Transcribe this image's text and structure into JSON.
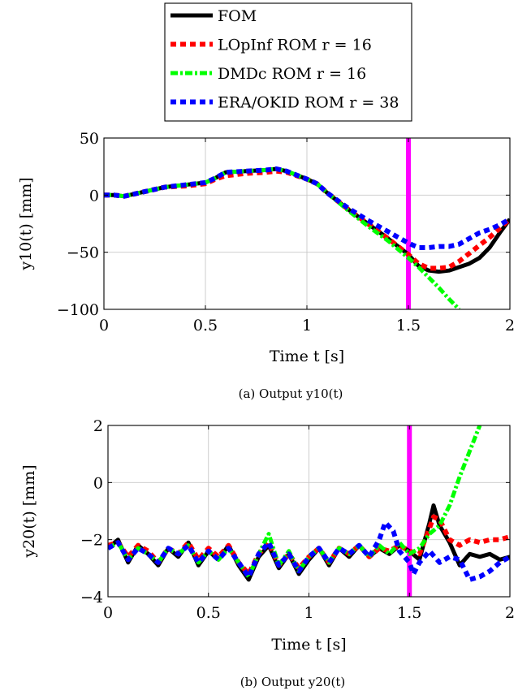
{
  "legend": {
    "entries": [
      {
        "label": "FOM",
        "color": "#000000",
        "dash": "solid",
        "width": 5
      },
      {
        "label": "LOpInf ROM r = 16",
        "color": "#ff0000",
        "dash": "dotted",
        "width": 6
      },
      {
        "label": "DMDc ROM r = 16",
        "color": "#00ff00",
        "dash": "dashdot",
        "width": 5
      },
      {
        "label": "ERA/OKID ROM r = 38",
        "color": "#0000ff",
        "dash": "dotted",
        "width": 6
      }
    ]
  },
  "colors": {
    "event_line": "#ff00ff",
    "grid": "#c8c8c8"
  },
  "chart_data": [
    {
      "type": "line",
      "caption": "(a) Output y10(t)",
      "xlabel": "Time t [s]",
      "ylabel": "y10(t) [mm]",
      "xlim": [
        0,
        2
      ],
      "ylim": [
        -100,
        50
      ],
      "xticks": [
        0,
        0.5,
        1,
        1.5,
        2
      ],
      "xtick_labels": [
        "0",
        "0.5",
        "1",
        "1.5",
        "2"
      ],
      "yticks": [
        -100,
        -50,
        0,
        50
      ],
      "ytick_labels": [
        "−100",
        "−50",
        "0",
        "50"
      ],
      "grid": true,
      "event_line_x": 1.5,
      "series": [
        {
          "name": "FOM",
          "x": [
            0,
            0.05,
            0.1,
            0.2,
            0.3,
            0.4,
            0.5,
            0.55,
            0.6,
            0.7,
            0.8,
            0.85,
            0.9,
            1.0,
            1.05,
            1.1,
            1.2,
            1.3,
            1.4,
            1.5,
            1.55,
            1.6,
            1.65,
            1.7,
            1.75,
            1.8,
            1.85,
            1.9,
            1.95,
            2.0
          ],
          "y": [
            0,
            0,
            -1,
            3,
            7,
            9,
            11,
            15,
            20,
            21,
            22,
            23,
            21,
            14,
            10,
            2,
            -12,
            -25,
            -38,
            -52,
            -62,
            -66,
            -67,
            -66,
            -63,
            -60,
            -55,
            -46,
            -33,
            -21
          ]
        },
        {
          "name": "LOpInf ROM r = 16",
          "x": [
            0,
            0.05,
            0.1,
            0.2,
            0.3,
            0.4,
            0.5,
            0.55,
            0.6,
            0.7,
            0.8,
            0.85,
            0.9,
            1.0,
            1.05,
            1.1,
            1.2,
            1.3,
            1.4,
            1.5,
            1.55,
            1.6,
            1.65,
            1.7,
            1.75,
            1.8,
            1.85,
            1.9,
            1.95,
            2.0
          ],
          "y": [
            0,
            0,
            -1,
            3,
            7,
            8,
            10,
            14,
            17,
            19,
            20,
            21,
            20,
            14,
            10,
            2,
            -12,
            -25,
            -38,
            -52,
            -60,
            -64,
            -64,
            -63,
            -58,
            -51,
            -44,
            -37,
            -29,
            -21
          ]
        },
        {
          "name": "DMDc ROM r = 16",
          "x": [
            0,
            0.05,
            0.1,
            0.2,
            0.3,
            0.4,
            0.5,
            0.55,
            0.6,
            0.7,
            0.8,
            0.85,
            0.9,
            1.0,
            1.05,
            1.1,
            1.2,
            1.3,
            1.4,
            1.5,
            1.55,
            1.6,
            1.65,
            1.7,
            1.75
          ],
          "y": [
            0,
            0,
            -1,
            3,
            7,
            9,
            11,
            15,
            20,
            21,
            22,
            23,
            21,
            14,
            10,
            2,
            -13,
            -27,
            -40,
            -55,
            -63,
            -72,
            -81,
            -91,
            -100
          ]
        },
        {
          "name": "ERA/OKID ROM r = 38",
          "x": [
            0,
            0.05,
            0.1,
            0.2,
            0.3,
            0.4,
            0.5,
            0.55,
            0.6,
            0.7,
            0.8,
            0.85,
            0.9,
            1.0,
            1.05,
            1.1,
            1.2,
            1.3,
            1.4,
            1.45,
            1.5,
            1.55,
            1.6,
            1.65,
            1.7,
            1.75,
            1.8,
            1.85,
            1.9,
            1.95,
            2.0
          ],
          "y": [
            0,
            0,
            -1,
            3,
            7,
            9,
            11,
            15,
            20,
            21,
            22,
            23,
            21,
            14,
            10,
            2,
            -11,
            -22,
            -32,
            -37,
            -42,
            -46,
            -46,
            -45,
            -45,
            -43,
            -38,
            -33,
            -30,
            -26,
            -21
          ]
        }
      ]
    },
    {
      "type": "line",
      "caption": "(b) Output y20(t)",
      "xlabel": "Time t [s]",
      "ylabel": "y20(t)  [mm]",
      "xlim": [
        0,
        2
      ],
      "ylim": [
        -4,
        2
      ],
      "xticks": [
        0,
        0.5,
        1,
        1.5,
        2
      ],
      "xtick_labels": [
        "0",
        "0.5",
        "1",
        "1.5",
        "2"
      ],
      "yticks": [
        -4,
        -2,
        0,
        2
      ],
      "ytick_labels": [
        "−4",
        "−2",
        "0",
        "2"
      ],
      "grid": true,
      "event_line_x": 1.5,
      "series": [
        {
          "name": "FOM",
          "x": [
            0,
            0.05,
            0.1,
            0.15,
            0.2,
            0.25,
            0.3,
            0.35,
            0.4,
            0.45,
            0.5,
            0.55,
            0.6,
            0.65,
            0.7,
            0.75,
            0.8,
            0.85,
            0.9,
            0.95,
            1.0,
            1.05,
            1.1,
            1.15,
            1.2,
            1.25,
            1.3,
            1.35,
            1.4,
            1.45,
            1.5,
            1.55,
            1.6,
            1.62,
            1.65,
            1.7,
            1.75,
            1.8,
            1.85,
            1.9,
            1.95,
            2.0
          ],
          "y": [
            -2.3,
            -2.0,
            -2.8,
            -2.2,
            -2.5,
            -2.9,
            -2.3,
            -2.6,
            -2.1,
            -2.9,
            -2.4,
            -2.7,
            -2.2,
            -2.9,
            -3.4,
            -2.6,
            -2.2,
            -3.0,
            -2.5,
            -3.2,
            -2.7,
            -2.3,
            -2.9,
            -2.3,
            -2.6,
            -2.2,
            -2.6,
            -2.3,
            -2.5,
            -2.2,
            -2.4,
            -2.7,
            -1.4,
            -0.8,
            -1.5,
            -2.1,
            -2.9,
            -2.5,
            -2.6,
            -2.5,
            -2.7,
            -2.6
          ]
        },
        {
          "name": "LOpInf ROM r = 16",
          "x": [
            0,
            0.05,
            0.1,
            0.15,
            0.2,
            0.25,
            0.3,
            0.35,
            0.4,
            0.45,
            0.5,
            0.55,
            0.6,
            0.65,
            0.7,
            0.75,
            0.8,
            0.85,
            0.9,
            0.95,
            1.0,
            1.05,
            1.1,
            1.15,
            1.2,
            1.25,
            1.3,
            1.35,
            1.4,
            1.45,
            1.5,
            1.55,
            1.6,
            1.62,
            1.65,
            1.7,
            1.75,
            1.8,
            1.85,
            1.9,
            1.95,
            2.0
          ],
          "y": [
            -2.2,
            -2.1,
            -2.6,
            -2.2,
            -2.4,
            -2.8,
            -2.3,
            -2.5,
            -2.1,
            -2.7,
            -2.3,
            -2.6,
            -2.2,
            -2.8,
            -3.2,
            -2.5,
            -2.1,
            -2.9,
            -2.5,
            -3.0,
            -2.6,
            -2.3,
            -2.8,
            -2.3,
            -2.5,
            -2.2,
            -2.6,
            -2.3,
            -2.4,
            -2.2,
            -2.4,
            -2.5,
            -1.6,
            -1.2,
            -1.3,
            -2.0,
            -2.2,
            -2.0,
            -2.1,
            -2.0,
            -2.0,
            -1.9
          ]
        },
        {
          "name": "DMDc ROM r = 16",
          "x": [
            0,
            0.05,
            0.1,
            0.15,
            0.2,
            0.25,
            0.3,
            0.35,
            0.4,
            0.45,
            0.5,
            0.55,
            0.6,
            0.65,
            0.7,
            0.75,
            0.8,
            0.85,
            0.9,
            0.95,
            1.0,
            1.05,
            1.1,
            1.15,
            1.2,
            1.25,
            1.3,
            1.35,
            1.4,
            1.45,
            1.5,
            1.55,
            1.6,
            1.65,
            1.7,
            1.75,
            1.8,
            1.85
          ],
          "y": [
            -2.3,
            -2.1,
            -2.7,
            -2.3,
            -2.5,
            -2.8,
            -2.3,
            -2.5,
            -2.2,
            -2.8,
            -2.4,
            -2.7,
            -2.3,
            -2.8,
            -3.3,
            -2.5,
            -1.8,
            -2.9,
            -2.4,
            -3.1,
            -2.6,
            -2.3,
            -2.8,
            -2.3,
            -2.5,
            -2.2,
            -2.6,
            -2.2,
            -2.5,
            -2.1,
            -2.5,
            -2.3,
            -1.8,
            -1.5,
            -0.8,
            0.2,
            1.1,
            2.0
          ]
        },
        {
          "name": "ERA/OKID ROM r = 38",
          "x": [
            0,
            0.05,
            0.1,
            0.15,
            0.2,
            0.25,
            0.3,
            0.35,
            0.4,
            0.45,
            0.5,
            0.55,
            0.6,
            0.65,
            0.7,
            0.75,
            0.8,
            0.85,
            0.9,
            0.95,
            1.0,
            1.05,
            1.1,
            1.15,
            1.2,
            1.25,
            1.3,
            1.35,
            1.38,
            1.42,
            1.45,
            1.5,
            1.52,
            1.55,
            1.6,
            1.65,
            1.7,
            1.75,
            1.8,
            1.85,
            1.9,
            1.95,
            2.0
          ],
          "y": [
            -2.3,
            -2.1,
            -2.7,
            -2.3,
            -2.5,
            -2.8,
            -2.3,
            -2.5,
            -2.2,
            -2.8,
            -2.4,
            -2.7,
            -2.3,
            -2.8,
            -3.3,
            -2.5,
            -2.1,
            -2.9,
            -2.5,
            -3.1,
            -2.6,
            -2.3,
            -2.8,
            -2.3,
            -2.5,
            -2.2,
            -2.6,
            -2.0,
            -1.4,
            -1.7,
            -2.4,
            -2.8,
            -3.2,
            -2.8,
            -2.4,
            -2.8,
            -2.6,
            -2.7,
            -3.4,
            -3.3,
            -3.1,
            -2.8,
            -2.6
          ]
        }
      ]
    }
  ]
}
